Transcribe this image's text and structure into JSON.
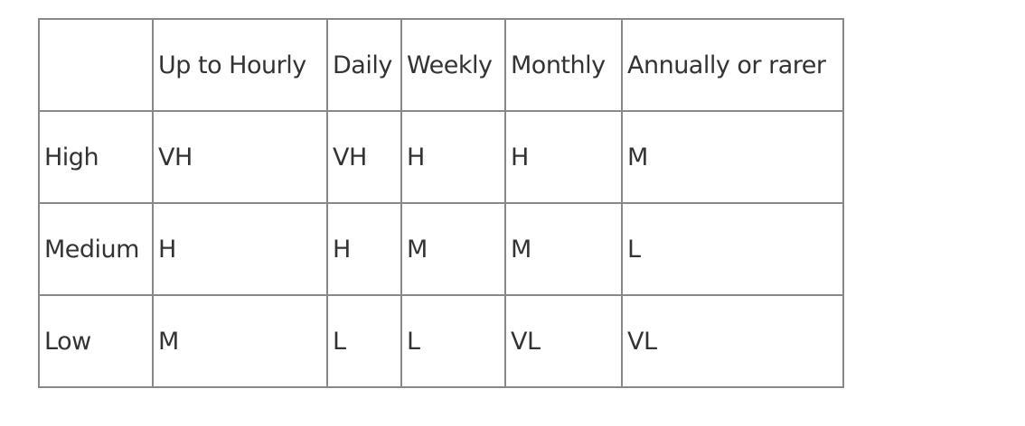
{
  "table": {
    "header": [
      "",
      "Up to Hourly",
      "Daily",
      "Weekly",
      "Monthly",
      "Annually or rarer"
    ],
    "rows": [
      [
        "High",
        "VH",
        "VH",
        "H",
        "H",
        "M"
      ],
      [
        "Medium",
        "H",
        "H",
        "M",
        "M",
        "L"
      ],
      [
        "Low",
        "M",
        "L",
        "L",
        "VL",
        "VL"
      ]
    ]
  }
}
